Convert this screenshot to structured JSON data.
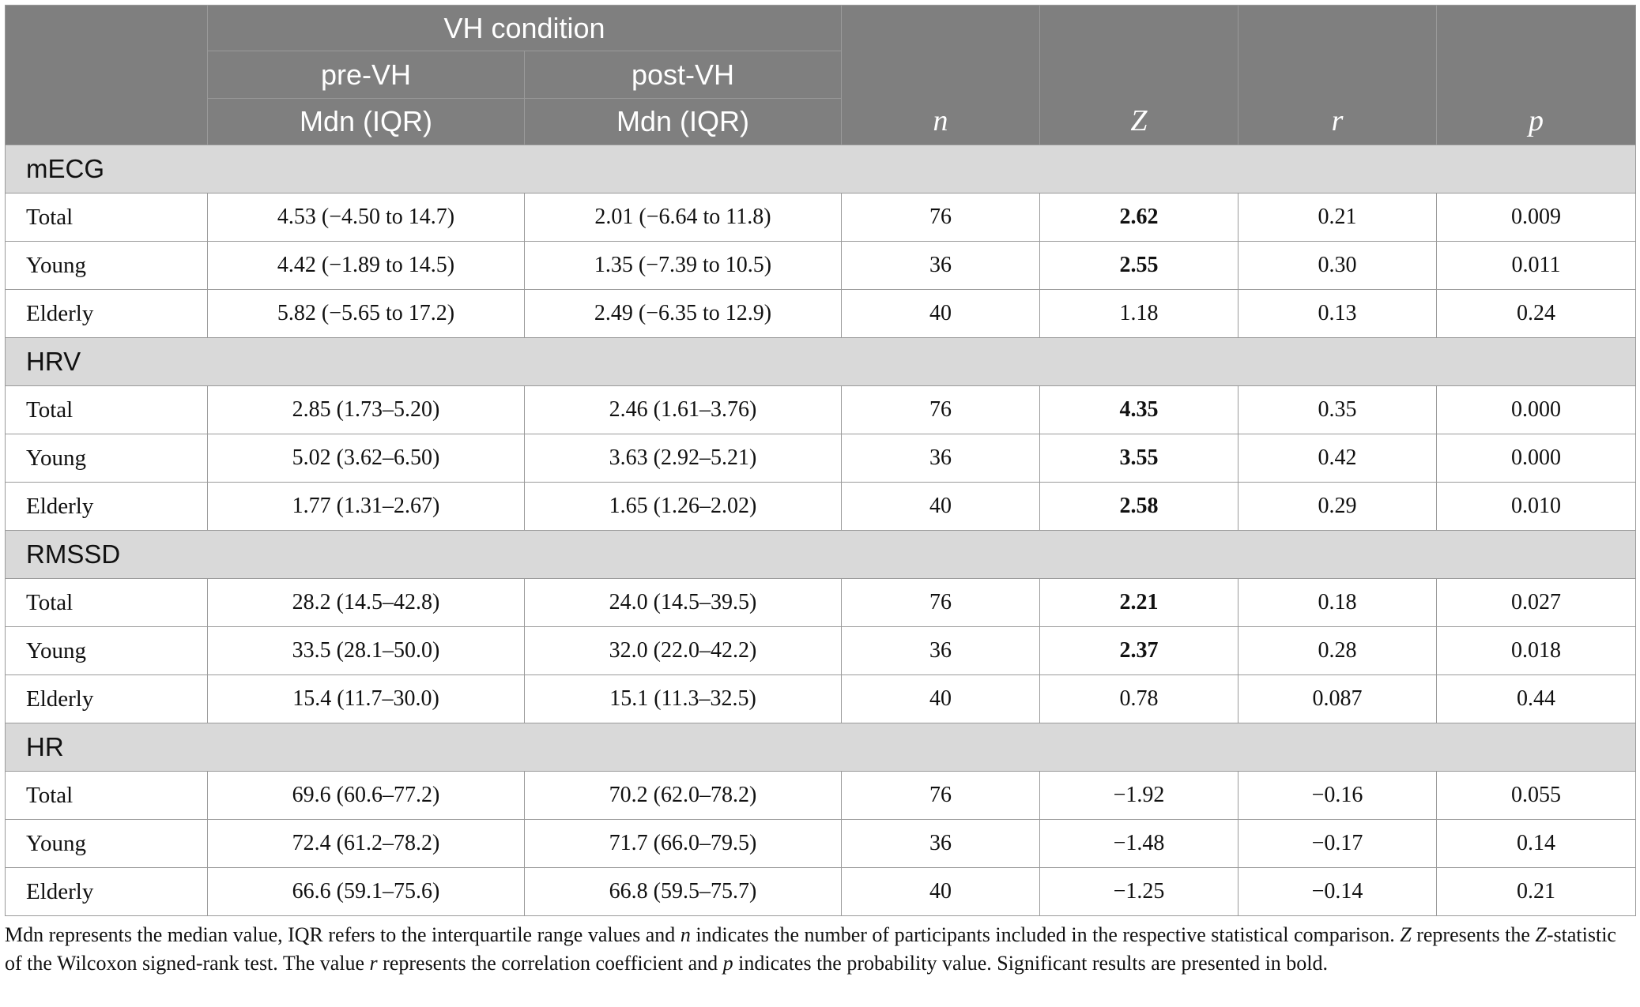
{
  "header": {
    "group_title": "VH condition",
    "pre_label": "pre-VH",
    "post_label": "post-VH",
    "pre_sub": "Mdn (IQR)",
    "post_sub": "Mdn (IQR)",
    "n": "n",
    "z": "Z",
    "r": "r",
    "p": "p"
  },
  "sections": [
    {
      "title": "mECG",
      "rows": [
        {
          "label": "Total",
          "pre": "4.53 (−4.50 to 14.7)",
          "post": "2.01 (−6.64 to 11.8)",
          "n": "76",
          "z": "2.62",
          "z_bold": true,
          "r": "0.21",
          "p": "0.009"
        },
        {
          "label": "Young",
          "pre": "4.42 (−1.89 to 14.5)",
          "post": "1.35 (−7.39 to 10.5)",
          "n": "36",
          "z": "2.55",
          "z_bold": true,
          "r": "0.30",
          "p": "0.011"
        },
        {
          "label": "Elderly",
          "pre": "5.82 (−5.65 to 17.2)",
          "post": "2.49 (−6.35 to 12.9)",
          "n": "40",
          "z": "1.18",
          "z_bold": false,
          "r": "0.13",
          "p": "0.24"
        }
      ]
    },
    {
      "title": "HRV",
      "rows": [
        {
          "label": "Total",
          "pre": "2.85 (1.73–5.20)",
          "post": "2.46 (1.61–3.76)",
          "n": "76",
          "z": "4.35",
          "z_bold": true,
          "r": "0.35",
          "p": "0.000"
        },
        {
          "label": "Young",
          "pre": "5.02 (3.62–6.50)",
          "post": "3.63 (2.92–5.21)",
          "n": "36",
          "z": "3.55",
          "z_bold": true,
          "r": "0.42",
          "p": "0.000"
        },
        {
          "label": "Elderly",
          "pre": "1.77 (1.31–2.67)",
          "post": "1.65 (1.26–2.02)",
          "n": "40",
          "z": "2.58",
          "z_bold": true,
          "r": "0.29",
          "p": "0.010"
        }
      ]
    },
    {
      "title": "RMSSD",
      "rows": [
        {
          "label": "Total",
          "pre": "28.2 (14.5–42.8)",
          "post": "24.0 (14.5–39.5)",
          "n": "76",
          "z": "2.21",
          "z_bold": true,
          "r": "0.18",
          "p": "0.027"
        },
        {
          "label": "Young",
          "pre": "33.5 (28.1–50.0)",
          "post": "32.0 (22.0–42.2)",
          "n": "36",
          "z": "2.37",
          "z_bold": true,
          "r": "0.28",
          "p": "0.018"
        },
        {
          "label": "Elderly",
          "pre": "15.4 (11.7–30.0)",
          "post": "15.1 (11.3–32.5)",
          "n": "40",
          "z": "0.78",
          "z_bold": false,
          "r": "0.087",
          "p": "0.44"
        }
      ]
    },
    {
      "title": "HR",
      "rows": [
        {
          "label": "Total",
          "pre": "69.6 (60.6–77.2)",
          "post": "70.2 (62.0–78.2)",
          "n": "76",
          "z": "−1.92",
          "z_bold": false,
          "r": "−0.16",
          "p": "0.055"
        },
        {
          "label": "Young",
          "pre": "72.4 (61.2–78.2)",
          "post": "71.7 (66.0–79.5)",
          "n": "36",
          "z": "−1.48",
          "z_bold": false,
          "r": "−0.17",
          "p": "0.14"
        },
        {
          "label": "Elderly",
          "pre": "66.6 (59.1–75.6)",
          "post": "66.8 (59.5–75.7)",
          "n": "40",
          "z": "−1.25",
          "z_bold": false,
          "r": "−0.14",
          "p": "0.21"
        }
      ]
    }
  ],
  "footnote": {
    "part1": "Mdn represents the median value, IQR refers to the interquartile range values and ",
    "n_sym": "n",
    "part2": " indicates the number of participants included in the respective statistical comparison. ",
    "z_sym": "Z",
    "part3": " represents the ",
    "z_sym2": "Z",
    "part4": "-statistic of the Wilcoxon signed-rank test. The value ",
    "r_sym": "r",
    "part5": " represents the correlation coefficient and ",
    "p_sym": "p",
    "part6": " indicates the probability value. Significant results are presented in bold."
  }
}
